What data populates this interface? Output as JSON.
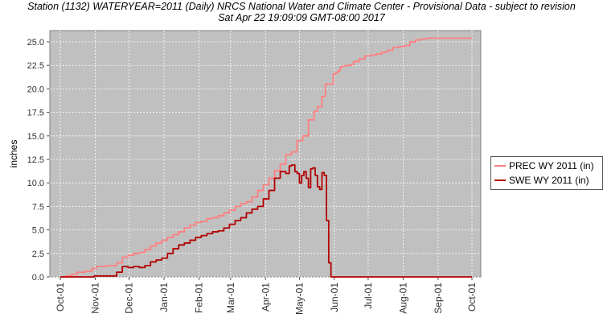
{
  "chart_data": {
    "type": "line",
    "title": "Station (1132) WATERYEAR=2011 (Daily) NRCS National Water and Climate Center - Provisional Data - subject to revision",
    "subtitle": "Sat Apr 22 19:09:09 GMT-08:00 2017",
    "xlabel": "",
    "ylabel": "inches",
    "x_tick_labels": [
      "Oct-01",
      "Nov-01",
      "Dec-01",
      "Jan-01",
      "Feb-01",
      "Mar-01",
      "Apr-01",
      "May-01",
      "Jun-01",
      "Jul-01",
      "Aug-01",
      "Sep-01",
      "Oct-01"
    ],
    "y_tick_labels": [
      "0.0",
      "2.5",
      "5.0",
      "7.5",
      "10.0",
      "12.5",
      "15.0",
      "17.5",
      "20.0",
      "22.5",
      "25.0"
    ],
    "ylim": [
      0,
      26.2
    ],
    "xlim_days": [
      0,
      365
    ],
    "grid": true,
    "legend_position": "right",
    "plot_background": "#c0c0c0",
    "series": [
      {
        "name": "PREC WY 2011  (in)",
        "color": "#ff7f7f",
        "x": [
          0,
          5,
          10,
          15,
          22,
          28,
          32,
          40,
          45,
          50,
          55,
          60,
          65,
          70,
          75,
          80,
          85,
          90,
          95,
          100,
          105,
          110,
          115,
          120,
          125,
          130,
          135,
          140,
          145,
          150,
          155,
          160,
          165,
          170,
          175,
          180,
          185,
          190,
          195,
          200,
          205,
          210,
          215,
          220,
          225,
          228,
          232,
          235,
          238,
          240,
          242,
          244,
          246,
          248,
          250,
          253,
          255,
          258,
          260,
          265,
          270,
          275,
          280,
          285,
          290,
          295,
          300,
          305,
          310,
          315,
          320,
          325,
          330,
          335,
          340,
          345,
          350,
          355,
          360,
          365
        ],
        "y": [
          0.0,
          0.1,
          0.3,
          0.5,
          0.6,
          0.9,
          1.1,
          1.2,
          1.2,
          1.5,
          2.1,
          2.3,
          2.5,
          2.6,
          2.9,
          3.3,
          3.6,
          3.9,
          4.2,
          4.5,
          4.8,
          5.2,
          5.5,
          5.8,
          5.9,
          6.2,
          6.3,
          6.5,
          6.8,
          7.1,
          7.5,
          7.8,
          8.0,
          8.5,
          9.2,
          9.8,
          10.5,
          11.3,
          12.0,
          13.0,
          13.3,
          14.5,
          15.0,
          16.7,
          17.6,
          18.1,
          19.2,
          20.5,
          20.5,
          20.5,
          21.6,
          21.7,
          21.9,
          22.3,
          22.4,
          22.5,
          22.5,
          22.6,
          22.9,
          23.2,
          23.5,
          23.6,
          23.7,
          23.9,
          24.1,
          24.4,
          24.5,
          24.6,
          25.0,
          25.2,
          25.3,
          25.4,
          25.4,
          25.4,
          25.4,
          25.4,
          25.4,
          25.4,
          25.4,
          25.4
        ]
      },
      {
        "name": "SWE WY 2011  (in)",
        "color": "#b30000",
        "x": [
          0,
          28,
          30,
          45,
          50,
          55,
          60,
          65,
          70,
          75,
          80,
          85,
          90,
          95,
          100,
          105,
          110,
          115,
          120,
          125,
          130,
          135,
          140,
          145,
          150,
          155,
          160,
          165,
          170,
          175,
          180,
          185,
          190,
          195,
          200,
          203,
          205,
          208,
          210,
          212,
          214,
          216,
          218,
          220,
          222,
          224,
          226,
          228,
          230,
          232,
          234,
          236,
          238,
          240,
          245,
          250,
          260,
          280,
          300,
          320,
          340,
          365
        ],
        "y": [
          0.0,
          0.0,
          0.1,
          0.1,
          0.5,
          1.1,
          1.0,
          1.1,
          1.0,
          1.2,
          1.6,
          1.8,
          2.0,
          2.5,
          3.0,
          3.4,
          3.6,
          3.9,
          4.2,
          4.4,
          4.6,
          4.8,
          4.9,
          5.2,
          5.6,
          6.0,
          6.3,
          6.8,
          7.2,
          7.5,
          8.3,
          9.2,
          10.5,
          11.2,
          11.0,
          11.8,
          11.9,
          11.2,
          11.0,
          10.0,
          10.8,
          11.2,
          10.5,
          9.5,
          11.5,
          11.6,
          10.8,
          9.6,
          9.3,
          11.1,
          10.8,
          6.0,
          1.5,
          0.0,
          0.0,
          0.0,
          0.0,
          0.0,
          0.0,
          0.0,
          0.0,
          0.0
        ]
      }
    ]
  }
}
